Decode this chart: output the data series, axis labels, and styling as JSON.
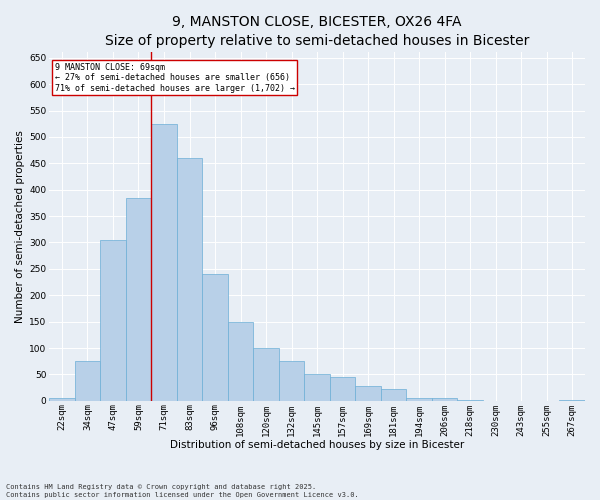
{
  "title": "9, MANSTON CLOSE, BICESTER, OX26 4FA",
  "subtitle": "Size of property relative to semi-detached houses in Bicester",
  "xlabel": "Distribution of semi-detached houses by size in Bicester",
  "ylabel": "Number of semi-detached properties",
  "categories": [
    "22sqm",
    "34sqm",
    "47sqm",
    "59sqm",
    "71sqm",
    "83sqm",
    "96sqm",
    "108sqm",
    "120sqm",
    "132sqm",
    "145sqm",
    "157sqm",
    "169sqm",
    "181sqm",
    "194sqm",
    "206sqm",
    "218sqm",
    "230sqm",
    "243sqm",
    "255sqm",
    "267sqm"
  ],
  "values": [
    5,
    75,
    305,
    385,
    525,
    460,
    240,
    150,
    100,
    75,
    50,
    45,
    28,
    22,
    5,
    5,
    1,
    0,
    0,
    0,
    1
  ],
  "bar_color": "#b8d0e8",
  "bar_edge_color": "#6baed6",
  "marker_bin_index": 3.5,
  "annotation_text": "9 MANSTON CLOSE: 69sqm\n← 27% of semi-detached houses are smaller (656)\n71% of semi-detached houses are larger (1,702) →",
  "annotation_box_color": "#ffffff",
  "annotation_box_edge": "#cc0000",
  "vline_color": "#cc0000",
  "ylim": [
    0,
    660
  ],
  "yticks": [
    0,
    50,
    100,
    150,
    200,
    250,
    300,
    350,
    400,
    450,
    500,
    550,
    600,
    650
  ],
  "footnote": "Contains HM Land Registry data © Crown copyright and database right 2025.\nContains public sector information licensed under the Open Government Licence v3.0.",
  "background_color": "#e8eef5",
  "plot_bg_color": "#e8eef5",
  "title_fontsize": 10,
  "axis_label_fontsize": 7.5,
  "tick_fontsize": 6.5,
  "annotation_fontsize": 6,
  "footnote_fontsize": 5
}
